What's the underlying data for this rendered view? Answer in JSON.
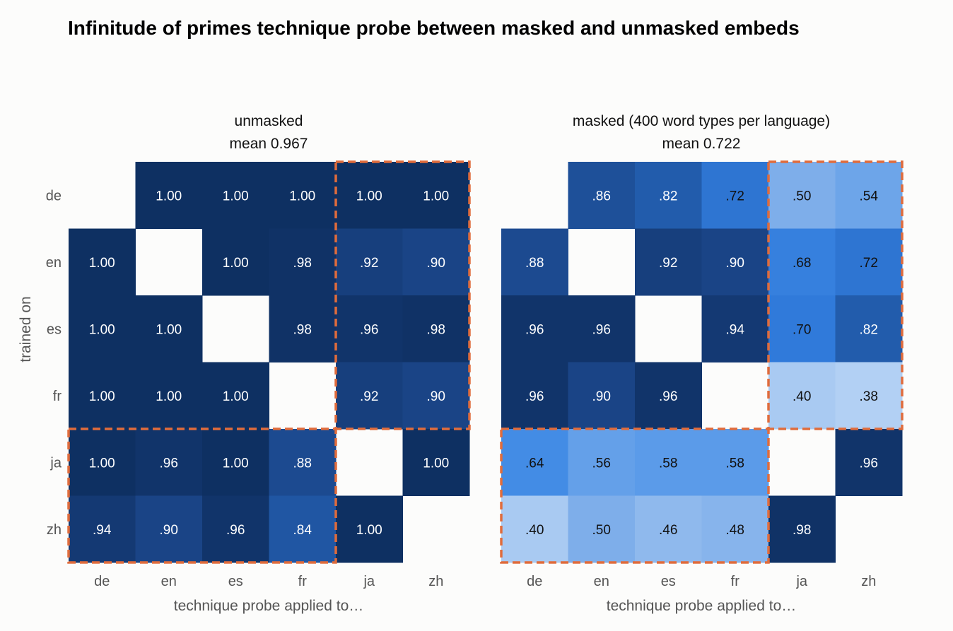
{
  "chart_data": {
    "type": "heatmap",
    "title": "Infinitude of primes technique probe between masked and unmasked embeds",
    "ylabel": "trained on",
    "row_labels": [
      "de",
      "en",
      "es",
      "fr",
      "ja",
      "zh"
    ],
    "col_labels": [
      "de",
      "en",
      "es",
      "fr",
      "ja",
      "zh"
    ],
    "panels": [
      {
        "title": "unmasked",
        "subtitle": "mean 0.967",
        "xlabel": "technique probe applied to…",
        "values": [
          [
            null,
            1.0,
            1.0,
            1.0,
            1.0,
            1.0
          ],
          [
            1.0,
            null,
            1.0,
            0.98,
            0.92,
            0.9
          ],
          [
            1.0,
            1.0,
            null,
            0.98,
            0.96,
            0.98
          ],
          [
            1.0,
            1.0,
            1.0,
            null,
            0.92,
            0.9
          ],
          [
            1.0,
            0.96,
            1.0,
            0.88,
            null,
            1.0
          ],
          [
            0.94,
            0.9,
            0.96,
            0.84,
            1.0,
            null
          ]
        ],
        "labels": [
          [
            "",
            "1.00",
            "1.00",
            "1.00",
            "1.00",
            "1.00"
          ],
          [
            "1.00",
            "",
            "1.00",
            ".98",
            ".92",
            ".90"
          ],
          [
            "1.00",
            "1.00",
            "",
            ".98",
            ".96",
            ".98"
          ],
          [
            "1.00",
            "1.00",
            "1.00",
            "",
            ".92",
            ".90"
          ],
          [
            "1.00",
            ".96",
            "1.00",
            ".88",
            "",
            "1.00"
          ],
          [
            ".94",
            ".90",
            ".96",
            ".84",
            "1.00",
            ""
          ]
        ]
      },
      {
        "title": "masked (400 word types per language)",
        "subtitle": "mean 0.722",
        "xlabel": "technique probe applied to…",
        "values": [
          [
            null,
            0.86,
            0.82,
            0.72,
            0.5,
            0.54
          ],
          [
            0.88,
            null,
            0.92,
            0.9,
            0.68,
            0.72
          ],
          [
            0.96,
            0.96,
            null,
            0.94,
            0.7,
            0.82
          ],
          [
            0.96,
            0.9,
            0.96,
            null,
            0.4,
            0.38
          ],
          [
            0.64,
            0.56,
            0.58,
            0.58,
            null,
            0.96
          ],
          [
            0.4,
            0.5,
            0.46,
            0.48,
            0.98,
            null
          ]
        ],
        "labels": [
          [
            "",
            ".86",
            ".82",
            ".72",
            ".50",
            ".54"
          ],
          [
            ".88",
            "",
            ".92",
            ".90",
            ".68",
            ".72"
          ],
          [
            ".96",
            ".96",
            "",
            ".94",
            ".70",
            ".82"
          ],
          [
            ".96",
            ".90",
            ".96",
            "",
            ".40",
            ".38"
          ],
          [
            ".64",
            ".56",
            ".58",
            ".58",
            "",
            ".96"
          ],
          [
            ".40",
            ".50",
            ".46",
            ".48",
            ".98",
            ""
          ]
        ]
      }
    ],
    "highlight_boxes": "dashed orange boxes around ja/zh columns for de–fr rows and de–fr columns for ja/zh rows",
    "highlight_color": "#e06c3c"
  }
}
